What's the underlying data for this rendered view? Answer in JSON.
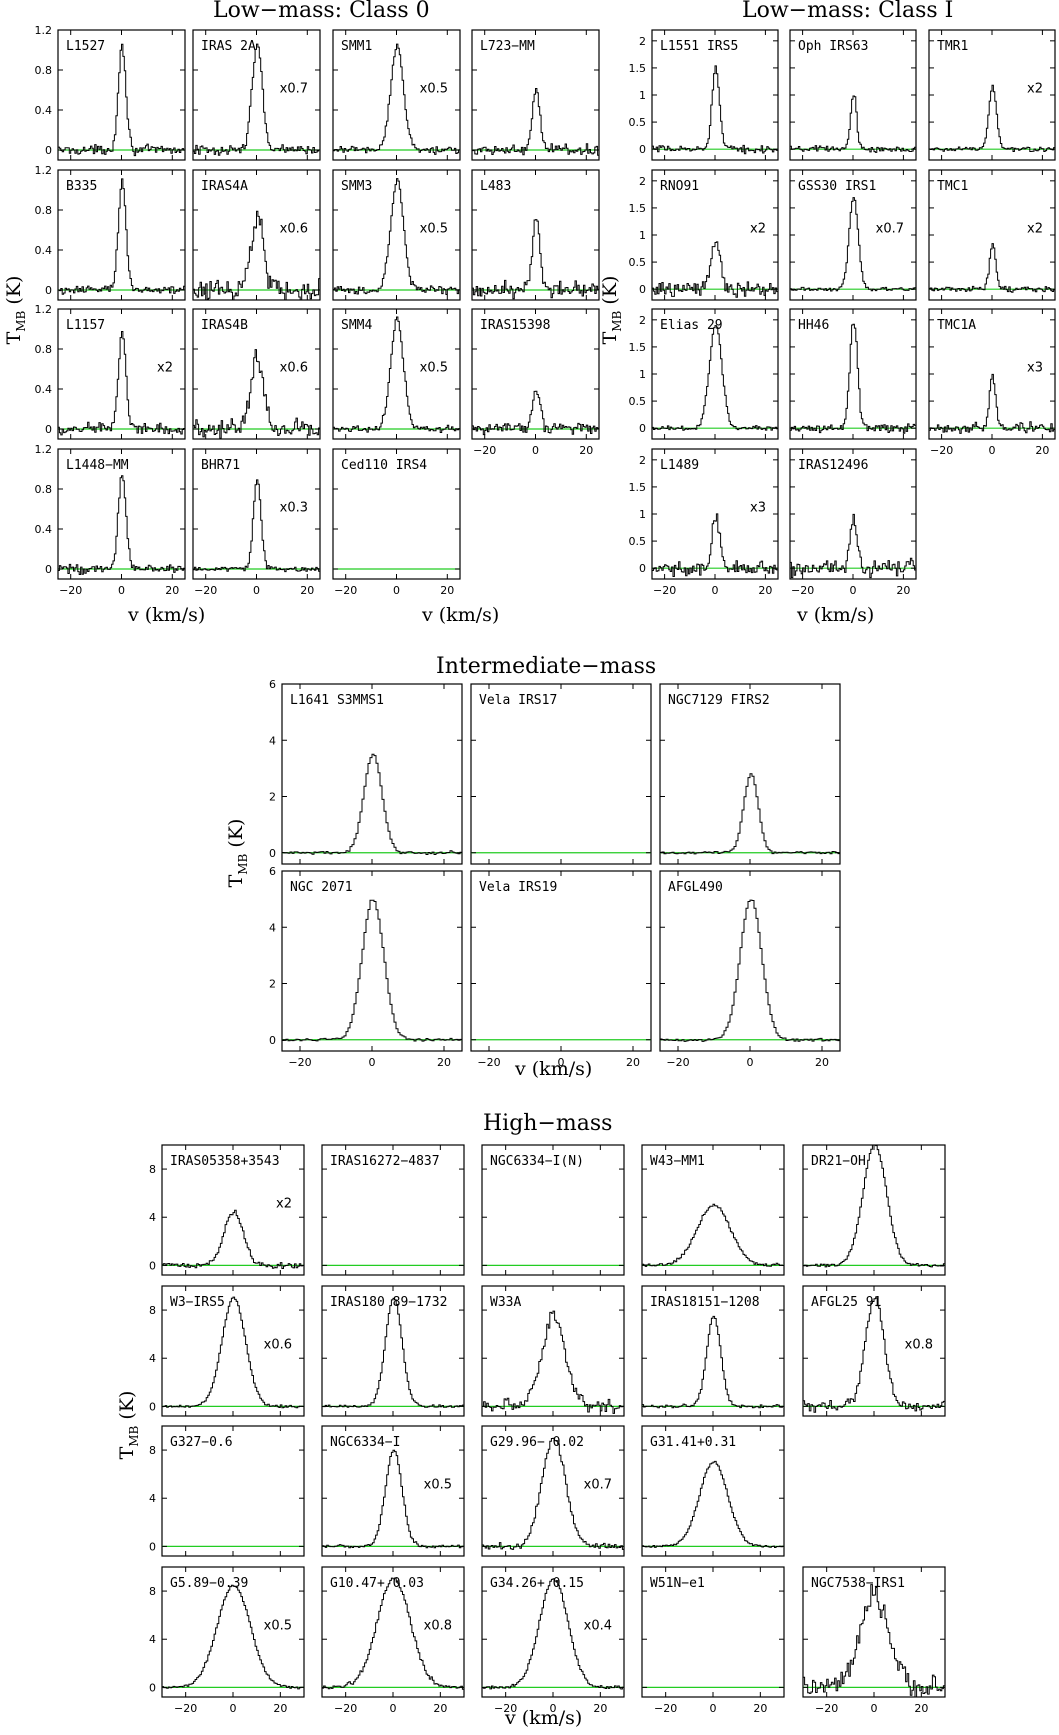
{
  "figure": {
    "sections": [
      {
        "title": "Low−mass: Class 0",
        "xlabel": "v (km/s)",
        "ylabel": "T",
        "ylabel_sub": "MB",
        "ylabel_unit": " (K)"
      },
      {
        "title": "Low−mass: Class I",
        "xlabel": "v (km/s)",
        "ylabel": "T",
        "ylabel_sub": "MB",
        "ylabel_unit": " (K)"
      },
      {
        "title": "Intermediate−mass",
        "xlabel": "v (km/s)",
        "ylabel": "T",
        "ylabel_sub": "MB",
        "ylabel_unit": " (K)"
      },
      {
        "title": "High−mass",
        "xlabel": "v (km/s)",
        "ylabel": "T",
        "ylabel_sub": "MB",
        "ylabel_unit": " (K)"
      }
    ],
    "colors": {
      "spectrum": "#000000",
      "baseline": "#22cc22",
      "frame": "#000000"
    }
  },
  "chart_data": [
    {
      "type": "line",
      "title": "Low−mass: Class 0",
      "xlabel": "v (km/s)",
      "ylabel": "T_MB (K)",
      "xlim": [
        -25,
        25
      ],
      "ylim": [
        -0.1,
        1.2
      ],
      "xticks": [
        -20,
        0,
        20
      ],
      "yticks": [
        0,
        0.4,
        0.8,
        1.2
      ],
      "panels": [
        {
          "name": "L1527",
          "scale": "",
          "peak": 1.05,
          "width": 1.5,
          "noise": 0.05,
          "has_data": true
        },
        {
          "name": "IRAS   2A",
          "scale": "x0.7",
          "peak": 1.05,
          "width": 2.0,
          "noise": 0.05,
          "has_data": true
        },
        {
          "name": "SMM1",
          "scale": "x0.5",
          "peak": 1.05,
          "width": 2.5,
          "noise": 0.04,
          "has_data": true
        },
        {
          "name": "L723−MM",
          "scale": "",
          "peak": 0.6,
          "width": 1.5,
          "noise": 0.06,
          "has_data": true
        },
        {
          "name": "B335",
          "scale": "",
          "peak": 1.1,
          "width": 1.5,
          "noise": 0.04,
          "has_data": true
        },
        {
          "name": "IRAS4A",
          "scale": "x0.6",
          "peak": 0.75,
          "width": 2.5,
          "noise": 0.12,
          "has_data": true
        },
        {
          "name": "SMM3",
          "scale": "x0.5",
          "peak": 1.1,
          "width": 2.5,
          "noise": 0.04,
          "has_data": true
        },
        {
          "name": "L483",
          "scale": "",
          "peak": 0.75,
          "width": 1.5,
          "noise": 0.09,
          "has_data": true
        },
        {
          "name": "L1157",
          "scale": "x2",
          "peak": 0.95,
          "width": 1.5,
          "noise": 0.06,
          "has_data": true
        },
        {
          "name": "IRAS4B",
          "scale": "x0.6",
          "peak": 0.72,
          "width": 2.5,
          "noise": 0.1,
          "has_data": true
        },
        {
          "name": "SMM4",
          "scale": "x0.5",
          "peak": 1.1,
          "width": 2.5,
          "noise": 0.04,
          "has_data": true
        },
        {
          "name": "IRAS15398",
          "scale": "",
          "peak": 0.4,
          "width": 1.5,
          "noise": 0.06,
          "has_data": true
        },
        {
          "name": "L1448−MM",
          "scale": "",
          "peak": 0.95,
          "width": 1.5,
          "noise": 0.05,
          "has_data": true
        },
        {
          "name": "BHR71",
          "scale": "x0.3",
          "peak": 0.9,
          "width": 1.5,
          "noise": 0.03,
          "has_data": true
        },
        {
          "name": "Ced110 IRS4",
          "scale": "",
          "peak": 0,
          "width": 1,
          "noise": 0,
          "has_data": false
        }
      ]
    },
    {
      "type": "line",
      "title": "Low−mass: Class I",
      "xlabel": "v (km/s)",
      "ylabel": "T_MB (K)",
      "xlim": [
        -25,
        25
      ],
      "ylim": [
        -0.2,
        2.2
      ],
      "xticks": [
        -20,
        0,
        20
      ],
      "yticks": [
        0,
        0.5,
        1,
        1.5,
        2
      ],
      "panels": [
        {
          "name": "L1551 IRS5",
          "scale": "",
          "peak": 1.5,
          "width": 1.5,
          "noise": 0.07,
          "has_data": true
        },
        {
          "name": "Oph IRS63",
          "scale": "",
          "peak": 1.0,
          "width": 1.2,
          "noise": 0.06,
          "has_data": true
        },
        {
          "name": "TMR1",
          "scale": "x2",
          "peak": 1.15,
          "width": 1.5,
          "noise": 0.05,
          "has_data": true
        },
        {
          "name": "RNO91",
          "scale": "x2",
          "peak": 0.9,
          "width": 1.8,
          "noise": 0.15,
          "has_data": true
        },
        {
          "name": "GSS30 IRS1",
          "scale": "x0.7",
          "peak": 1.7,
          "width": 1.8,
          "noise": 0.04,
          "has_data": true
        },
        {
          "name": "TMC1",
          "scale": "x2",
          "peak": 0.85,
          "width": 1.2,
          "noise": 0.05,
          "has_data": true
        },
        {
          "name": "Elias  29",
          "scale": "",
          "peak": 1.9,
          "width": 2.5,
          "noise": 0.04,
          "has_data": true
        },
        {
          "name": "HH46",
          "scale": "",
          "peak": 2.0,
          "width": 1.5,
          "noise": 0.08,
          "has_data": true
        },
        {
          "name": "TMC1A",
          "scale": "x3",
          "peak": 1.0,
          "width": 1.2,
          "noise": 0.1,
          "has_data": true
        },
        {
          "name": "L1489",
          "scale": "x3",
          "peak": 1.0,
          "width": 1.5,
          "noise": 0.14,
          "has_data": true
        },
        {
          "name": "IRAS12496",
          "scale": "",
          "peak": 0.85,
          "width": 1.5,
          "noise": 0.16,
          "has_data": true
        }
      ]
    },
    {
      "type": "line",
      "title": "Intermediate−mass",
      "xlabel": "v (km/s)",
      "ylabel": "T_MB (K)",
      "xlim": [
        -25,
        25
      ],
      "ylim": [
        -0.4,
        6
      ],
      "xticks": [
        -20,
        0,
        20
      ],
      "yticks": [
        0,
        2,
        4,
        6
      ],
      "panels": [
        {
          "name": "L1641 S3MMS1",
          "scale": "",
          "peak": 3.5,
          "width": 2.5,
          "noise": 0.06,
          "has_data": true
        },
        {
          "name": "Vela IRS17",
          "scale": "",
          "peak": 0,
          "width": 1,
          "noise": 0,
          "has_data": false
        },
        {
          "name": "NGC7129 FIRS2",
          "scale": "",
          "peak": 2.8,
          "width": 2.0,
          "noise": 0.05,
          "has_data": true
        },
        {
          "name": "NGC 2071",
          "scale": "",
          "peak": 5.0,
          "width": 3.0,
          "noise": 0.05,
          "has_data": true
        },
        {
          "name": "Vela IRS19",
          "scale": "",
          "peak": 0,
          "width": 1,
          "noise": 0,
          "has_data": false
        },
        {
          "name": "AFGL490",
          "scale": "",
          "peak": 5.0,
          "width": 3.0,
          "noise": 0.05,
          "has_data": true
        }
      ]
    },
    {
      "type": "line",
      "title": "High−mass",
      "xlabel": "v (km/s)",
      "ylabel": "T_MB (K)",
      "xlim": [
        -30,
        30
      ],
      "ylim": [
        -0.8,
        10
      ],
      "xticks": [
        -20,
        0,
        20
      ],
      "yticks": [
        0,
        4,
        8
      ],
      "panels": [
        {
          "name": "IRAS05358+3543",
          "scale": "x2",
          "peak": 4.5,
          "width": 4.0,
          "noise": 0.25,
          "has_data": true
        },
        {
          "name": "IRAS16272−4837",
          "scale": "",
          "peak": 0,
          "width": 1,
          "noise": 0,
          "has_data": false
        },
        {
          "name": "NGC6334−I(N)",
          "scale": "",
          "peak": 0,
          "width": 1,
          "noise": 0,
          "has_data": false
        },
        {
          "name": "W43−MM1",
          "scale": "",
          "peak": 5.0,
          "width": 7.0,
          "noise": 0.15,
          "has_data": true
        },
        {
          "name": "DR21−OH",
          "scale": "",
          "peak": 10.0,
          "width": 5.0,
          "noise": 0.15,
          "has_data": true
        },
        {
          "name": "W3−IRS5",
          "scale": "x0.6",
          "peak": 9.0,
          "width": 5.0,
          "noise": 0.12,
          "has_data": true
        },
        {
          "name": "IRAS180 89−1732",
          "scale": "",
          "peak": 9.0,
          "width": 3.5,
          "noise": 0.12,
          "has_data": true
        },
        {
          "name": "W33A",
          "scale": "",
          "peak": 7.5,
          "width": 5.0,
          "noise": 0.6,
          "has_data": true
        },
        {
          "name": "IRAS18151−1208",
          "scale": "",
          "peak": 7.5,
          "width": 3.0,
          "noise": 0.15,
          "has_data": true
        },
        {
          "name": "AFGL25 91",
          "scale": "x0.8",
          "peak": 9.0,
          "width": 4.0,
          "noise": 0.45,
          "has_data": true
        },
        {
          "name": "G327−0.6",
          "scale": "",
          "peak": 0,
          "width": 1,
          "noise": 0,
          "has_data": false
        },
        {
          "name": "NGC6334−I",
          "scale": "x0.5",
          "peak": 8.0,
          "width": 3.5,
          "noise": 0.15,
          "has_data": true
        },
        {
          "name": "G29.96− 0.02",
          "scale": "x0.7",
          "peak": 9.0,
          "width": 5.0,
          "noise": 0.3,
          "has_data": true
        },
        {
          "name": "G31.41+0.31",
          "scale": "",
          "peak": 7.0,
          "width": 6.0,
          "noise": 0.12,
          "has_data": true
        },
        {
          "name": "G5.89−0.39",
          "scale": "x0.5",
          "peak": 8.5,
          "width": 7.0,
          "noise": 0.12,
          "has_data": true
        },
        {
          "name": "G10.47+ 0.03",
          "scale": "x0.8",
          "peak": 9.0,
          "width": 7.0,
          "noise": 0.2,
          "has_data": true
        },
        {
          "name": "G34.26+ 0.15",
          "scale": "x0.4",
          "peak": 9.0,
          "width": 6.0,
          "noise": 0.15,
          "has_data": true
        },
        {
          "name": "W51N−e1",
          "scale": "",
          "peak": 0,
          "width": 1,
          "noise": 0,
          "has_data": false
        },
        {
          "name": "NGC7538−IRS1",
          "scale": "",
          "peak": 7.5,
          "width": 6.0,
          "noise": 1.0,
          "has_data": true
        }
      ]
    }
  ]
}
